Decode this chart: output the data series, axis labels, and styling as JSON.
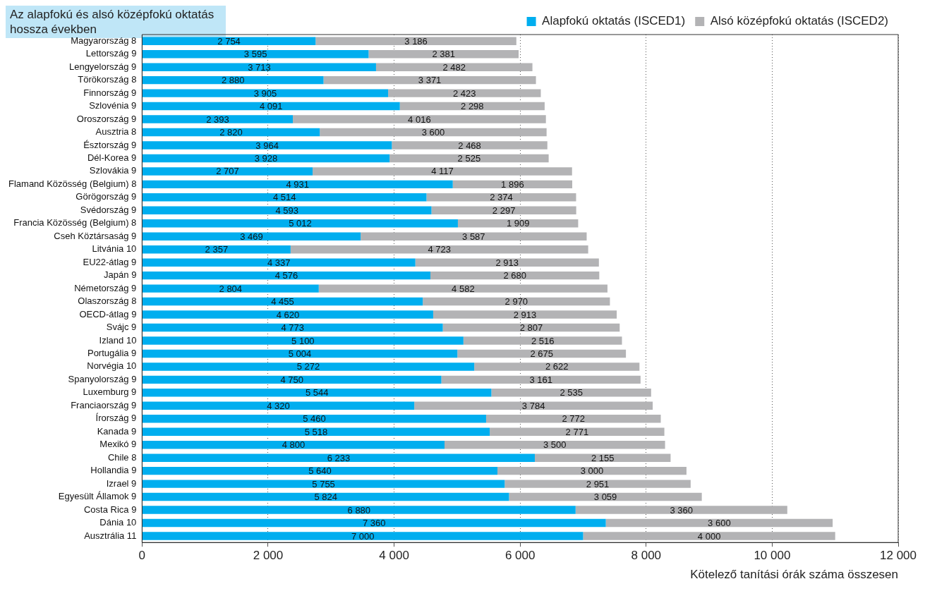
{
  "chart_data": {
    "type": "bar",
    "orientation": "horizontal",
    "stacked": true,
    "title": "Az alapfokú és alsó középfokú oktatás hossza években",
    "xlabel": "Kötelező tanítási órák száma összesen",
    "categories": [
      "Magyarország 8",
      "Lettország 9",
      "Lengyelország 9",
      "Törökország 8",
      "Finnország 9",
      "Szlovénia 9",
      "Oroszország 9",
      "Ausztria 8",
      "Észtország 9",
      "Dél-Korea 9",
      "Szlovákia 9",
      "Flamand Közösség (Belgium) 8",
      "Görögország 9",
      "Svédország 9",
      "Francia Közösség (Belgium) 8",
      "Cseh Köztársaság 9",
      "Litvánia 10",
      "EU22-átlag 9",
      "Japán 9",
      "Németország 9",
      "Olaszország 8",
      "OECD-átlag 9",
      "Svájc 9",
      "Izland 10",
      "Portugália 9",
      "Norvégia 10",
      "Spanyolország 9",
      "Luxemburg 9",
      "Franciaország 9",
      "Írország 9",
      "Kanada 9",
      "Mexikó 9",
      "Chile 8",
      "Hollandia 9",
      "Izrael 9",
      "Egyesült Államok 9",
      "Costa Rica 9",
      "Dánia 10",
      "Ausztrália 11"
    ],
    "series": [
      {
        "name": "Alapfokú oktatás (ISCED1)",
        "color": "#00aeef",
        "values": [
          2754,
          3595,
          3713,
          2880,
          3905,
          4091,
          2393,
          2820,
          3964,
          3928,
          2707,
          4931,
          4514,
          4593,
          5012,
          3469,
          2357,
          4337,
          4576,
          2804,
          4455,
          4620,
          4773,
          5100,
          5004,
          5272,
          4750,
          5544,
          4320,
          5460,
          5518,
          4800,
          6233,
          5640,
          5755,
          5824,
          6880,
          7360,
          7000
        ],
        "value_labels": [
          "2 754",
          "3 595",
          "3 713",
          "2 880",
          "3 905",
          "4 091",
          "2 393",
          "2 820",
          "3 964",
          "3 928",
          "2 707",
          "4 931",
          "4 514",
          "4 593",
          "5 012",
          "3 469",
          "2 357",
          "4 337",
          "4 576",
          "2 804",
          "4 455",
          "4 620",
          "4 773",
          "5 100",
          "5 004",
          "5 272",
          "4 750",
          "5 544",
          "4 320",
          "5 460",
          "5 518",
          "4 800",
          "6 233",
          "5 640",
          "5 755",
          "5 824",
          "6 880",
          "7 360",
          "7 000"
        ]
      },
      {
        "name": "Alsó középfokú oktatás (ISCED2)",
        "color": "#b3b3b5",
        "values": [
          3186,
          2381,
          2482,
          3371,
          2423,
          2298,
          4016,
          3600,
          2468,
          2525,
          4117,
          1896,
          2374,
          2297,
          1909,
          3587,
          4723,
          2913,
          2680,
          4582,
          2970,
          2913,
          2807,
          2516,
          2675,
          2622,
          3161,
          2535,
          3784,
          2772,
          2771,
          3500,
          2155,
          3000,
          2951,
          3059,
          3360,
          3600,
          4000
        ],
        "value_labels": [
          "3 186",
          "2 381",
          "2 482",
          "3 371",
          "2 423",
          "2 298",
          "4 016",
          "3 600",
          "2 468",
          "2 525",
          "4 117",
          "1 896",
          "2 374",
          "2 297",
          "1 909",
          "3 587",
          "4 723",
          "2 913",
          "2 680",
          "4 582",
          "2 970",
          "2 913",
          "2 807",
          "2 516",
          "2 675",
          "2 622",
          "3 161",
          "2 535",
          "3 784",
          "2 772",
          "2 771",
          "3 500",
          "2 155",
          "3 000",
          "2 951",
          "3 059",
          "3 360",
          "3 600",
          "4 000"
        ]
      }
    ],
    "xlim": [
      0,
      12000
    ],
    "xticks": [
      {
        "value": 0,
        "label": "0"
      },
      {
        "value": 2000,
        "label": "2 000"
      },
      {
        "value": 4000,
        "label": "4 000"
      },
      {
        "value": 6000,
        "label": "6 000"
      },
      {
        "value": 8000,
        "label": "8 000"
      },
      {
        "value": 10000,
        "label": "10 000"
      },
      {
        "value": 12000,
        "label": "12 000"
      }
    ],
    "grid": "x",
    "legend": "top"
  }
}
